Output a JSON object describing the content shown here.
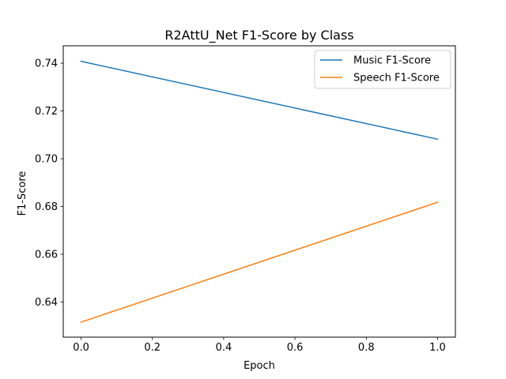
{
  "chart_data": {
    "type": "line",
    "title": "R2AttU_Net F1-Score by Class",
    "xlabel": "Epoch",
    "ylabel": "F1-Score",
    "x": [
      0.0,
      1.0
    ],
    "xlim": [
      -0.05,
      1.05
    ],
    "ylim": [
      0.6253,
      0.7473
    ],
    "xticks": [
      0.0,
      0.2,
      0.4,
      0.6,
      0.8,
      1.0
    ],
    "xtick_labels": [
      "0.0",
      "0.2",
      "0.4",
      "0.6",
      "0.8",
      "1.0"
    ],
    "yticks": [
      0.64,
      0.66,
      0.68,
      0.7,
      0.72,
      0.74
    ],
    "ytick_labels": [
      "0.64",
      "0.66",
      "0.68",
      "0.70",
      "0.72",
      "0.74"
    ],
    "grid": false,
    "legend_position": "top-right",
    "series": [
      {
        "name": "Music F1-Score",
        "color": "#1f77b4",
        "values": [
          0.7408,
          0.7082
        ]
      },
      {
        "name": "Speech F1-Score",
        "color": "#ff7f0e",
        "values": [
          0.6316,
          0.6818
        ]
      }
    ]
  }
}
